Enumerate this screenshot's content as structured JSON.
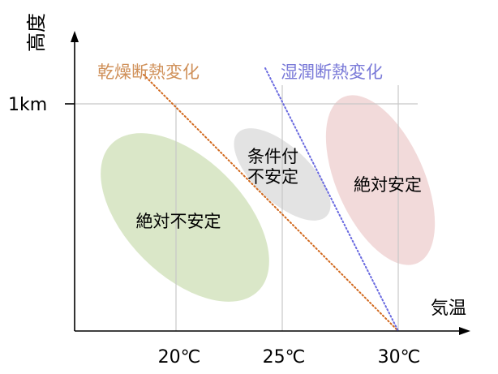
{
  "axes": {
    "y_label": "高度",
    "x_label": "気温",
    "y_tick": "1km",
    "x_ticks": [
      "20℃",
      "25℃",
      "30℃"
    ]
  },
  "lines": {
    "dry": {
      "label": "乾燥断熱変化",
      "color": "#d2691e"
    },
    "wet": {
      "label": "湿潤断熱変化",
      "color": "#6a6ae0"
    }
  },
  "regions": {
    "unstable": {
      "label": "絶対不安定",
      "color": "#c9dab0"
    },
    "conditional": {
      "line1": "条件付",
      "line2": "不安定",
      "color": "#d4d4d4"
    },
    "stable": {
      "label": "絶対安定",
      "color": "#ecc6c6"
    }
  },
  "colors": {
    "axis": "#000000",
    "grid": "#c8c8c8",
    "text": "#000000",
    "dry_label": "#d0915a",
    "wet_label": "#7a7ad8"
  }
}
